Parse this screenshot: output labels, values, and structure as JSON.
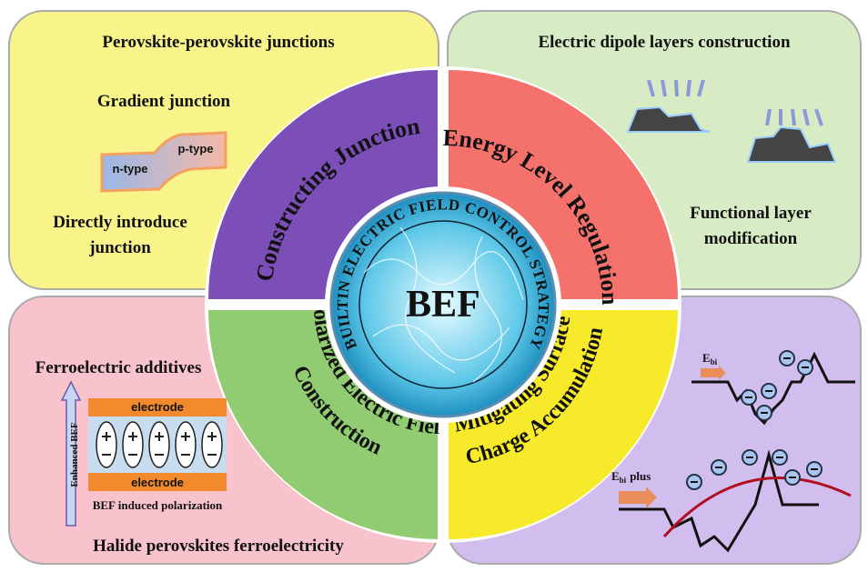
{
  "center": {
    "title": "BEF",
    "ring": "BUILTIN ELECTRIC FIELD CONTROL STRATEGY"
  },
  "quadrants": {
    "top_left": {
      "lines": [
        "Constructing Junction"
      ]
    },
    "top_right": {
      "lines": [
        "Energy Level Regulation"
      ]
    },
    "bottom_left": {
      "lines": [
        "Polarized Electric Field",
        "Construction"
      ]
    },
    "bottom_right": {
      "lines": [
        "Mitigating Surface",
        "Charge Accumulation"
      ]
    }
  },
  "panels": {
    "top_left": {
      "heading": "Perovskite-perovskite junctions",
      "subheading": "Gradient junction",
      "n_label": "n-type",
      "p_label": "p-type",
      "footer": [
        "Directly introduce",
        "junction"
      ]
    },
    "top_right": {
      "heading": "Electric dipole layers construction",
      "footer": [
        "Functional layer",
        "modification"
      ]
    },
    "bottom_left": {
      "heading": "Ferroelectric additives",
      "arrow_label": "Enhanced BEF",
      "electrode_top": "electrode",
      "electrode_bottom": "electrode",
      "caption": "BEF induced polarization",
      "footer": "Halide perovskites ferroelectricity"
    },
    "bottom_right": {
      "field_main": "E",
      "field_sub": "bi",
      "field2_main": "E",
      "field2_sub": "bi",
      "field2_suffix": "plus"
    }
  }
}
